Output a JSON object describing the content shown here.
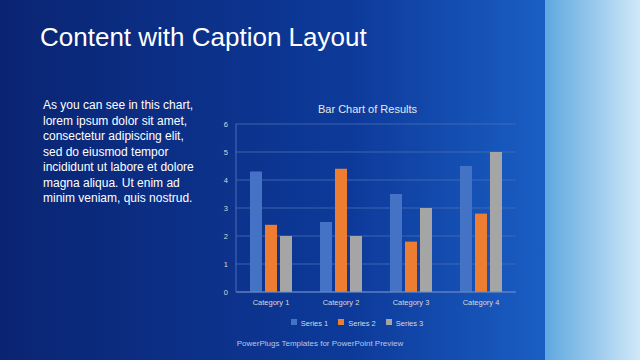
{
  "slide": {
    "title": "Content with Caption Layout",
    "caption": "As you can see in this chart, lorem ipsum dolor sit amet, consectetur adipiscing elit, sed do eiusmod tempor incididunt ut labore et dolore magna aliqua. Ut enim ad minim veniam, quis nostrud.",
    "footer": "PowerPlugs Templates for PowerPoint Preview"
  },
  "chart_data": {
    "type": "bar",
    "title": "Bar Chart of Results",
    "categories": [
      "Category 1",
      "Category 2",
      "Category 3",
      "Category 4"
    ],
    "series": [
      {
        "name": "Series 1",
        "color": "#4472c4",
        "values": [
          4.3,
          2.5,
          3.5,
          4.5
        ]
      },
      {
        "name": "Series 2",
        "color": "#ed7d31",
        "values": [
          2.4,
          4.4,
          1.8,
          2.8
        ]
      },
      {
        "name": "Series 3",
        "color": "#a5a5a5",
        "values": [
          2,
          2,
          3,
          5
        ]
      }
    ],
    "ylim": [
      0,
      6
    ],
    "yticks": [
      0,
      1,
      2,
      3,
      4,
      5,
      6
    ],
    "grid": true,
    "legend": "bottom"
  }
}
